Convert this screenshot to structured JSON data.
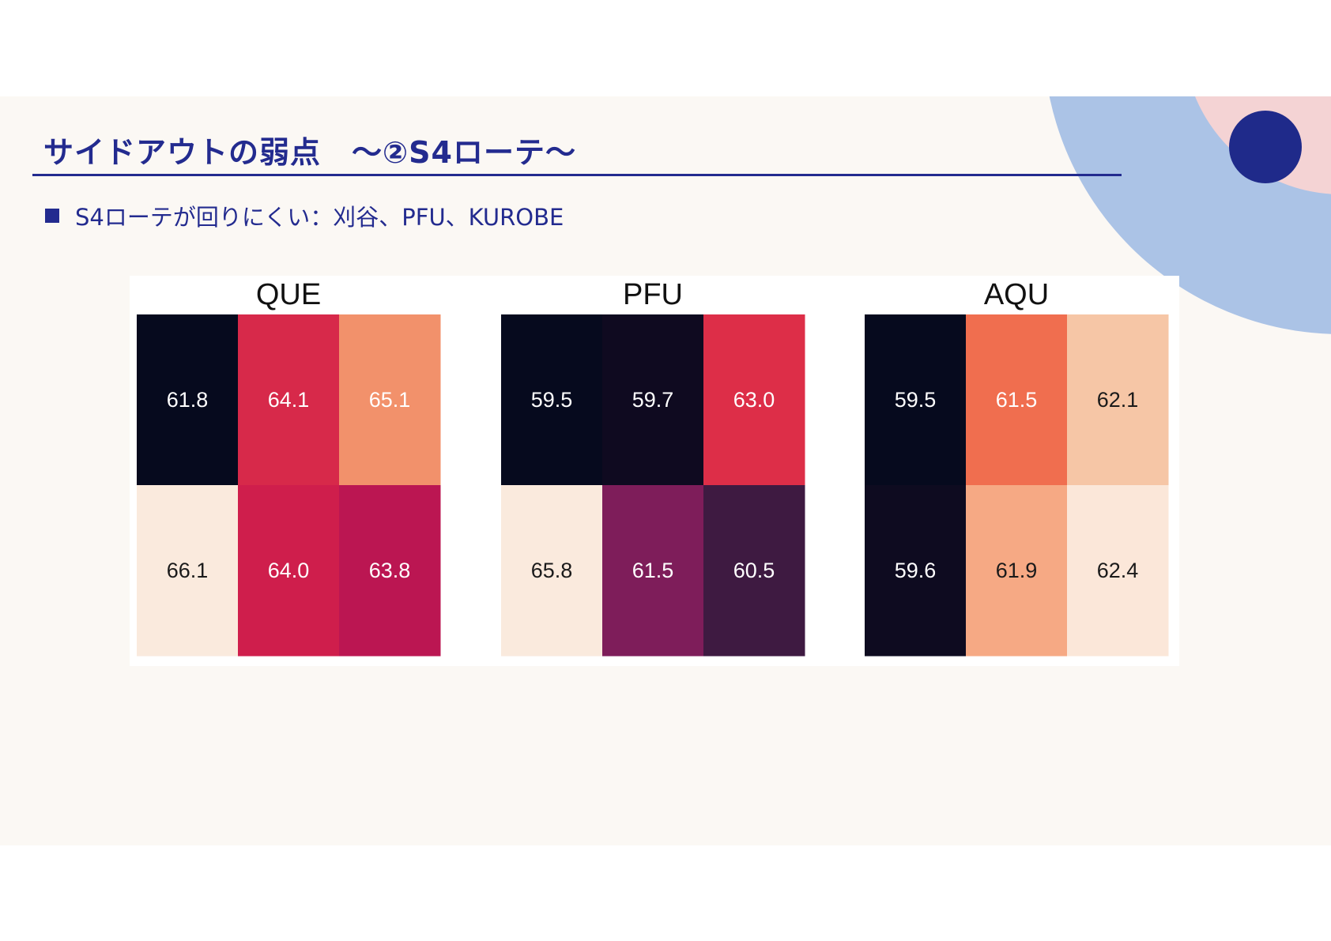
{
  "slide": {
    "title": "サイドアウトの弱点　～②S4ローテ～",
    "bullet": "S4ローテが回りにくい：刈谷、PFU、KUROBE",
    "colors": {
      "title": "#232b8f",
      "background": "#fbf8f4",
      "deco_outer": "#abc3e6",
      "deco_inner": "#f4d3d4",
      "deco_dot": "#1f2a8a"
    }
  },
  "chart_data": [
    {
      "type": "heatmap",
      "title": "QUE",
      "rows": 2,
      "cols": 3,
      "values": [
        [
          61.8,
          64.1,
          65.1
        ],
        [
          66.1,
          64.0,
          63.8
        ]
      ],
      "colors": [
        [
          "#060a1e",
          "#d7294a",
          "#f2916b"
        ],
        [
          "#faeadd",
          "#cf1e4c",
          "#bb1652"
        ]
      ],
      "label_colors": [
        [
          "#ffffff",
          "#ffffff",
          "#ffffff"
        ],
        [
          "#1a1a1a",
          "#ffffff",
          "#ffffff"
        ]
      ]
    },
    {
      "type": "heatmap",
      "title": "PFU",
      "rows": 2,
      "cols": 3,
      "values": [
        [
          59.5,
          59.7,
          63.0
        ],
        [
          65.8,
          61.5,
          60.5
        ]
      ],
      "colors": [
        [
          "#060a1e",
          "#0f0a20",
          "#dd2e48"
        ],
        [
          "#faeadd",
          "#7e1d5a",
          "#3e1a41"
        ]
      ],
      "label_colors": [
        [
          "#ffffff",
          "#ffffff",
          "#ffffff"
        ],
        [
          "#1a1a1a",
          "#ffffff",
          "#ffffff"
        ]
      ]
    },
    {
      "type": "heatmap",
      "title": "AQU",
      "rows": 2,
      "cols": 3,
      "values": [
        [
          59.5,
          61.5,
          62.1
        ],
        [
          59.6,
          61.9,
          62.4
        ]
      ],
      "colors": [
        [
          "#060a1e",
          "#f06e4f",
          "#f6c6a6"
        ],
        [
          "#0e0b20",
          "#f6a984",
          "#fbe7d9"
        ]
      ],
      "label_colors": [
        [
          "#ffffff",
          "#ffffff",
          "#1a1a1a"
        ],
        [
          "#ffffff",
          "#1a1a1a",
          "#1a1a1a"
        ]
      ]
    }
  ]
}
